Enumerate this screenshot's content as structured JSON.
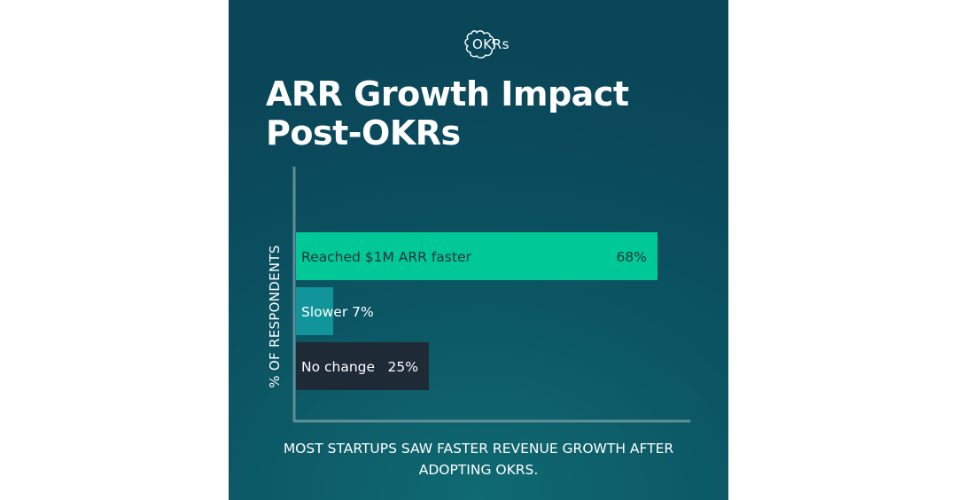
{
  "logo": {
    "text": "OKRs"
  },
  "title": {
    "line1": "ARR Growth Impact",
    "line2": "Post-OKRs"
  },
  "caption": {
    "line1": "MOST STARTUPS SAW FASTER REVENUE GROWTH AFTER",
    "line2": "ADOPTING OKRS."
  },
  "colors": {
    "background": "#0a4a5c",
    "axis": "#5f8f98",
    "series": [
      "#00c896",
      "#12959a",
      "#1f2a37"
    ]
  },
  "chart_data": {
    "type": "bar",
    "orientation": "horizontal",
    "title": "ARR Growth Impact Post-OKRs",
    "ylabel": "% OF RESPONDENTS",
    "xlabel": "",
    "xlim": [
      0,
      100
    ],
    "grid": false,
    "legend": "none",
    "categories": [
      "Reached $1M ARR faster",
      "Slower",
      "No change"
    ],
    "values": [
      68,
      7,
      25
    ],
    "value_labels": [
      "68%",
      "7%",
      "25%"
    ]
  }
}
